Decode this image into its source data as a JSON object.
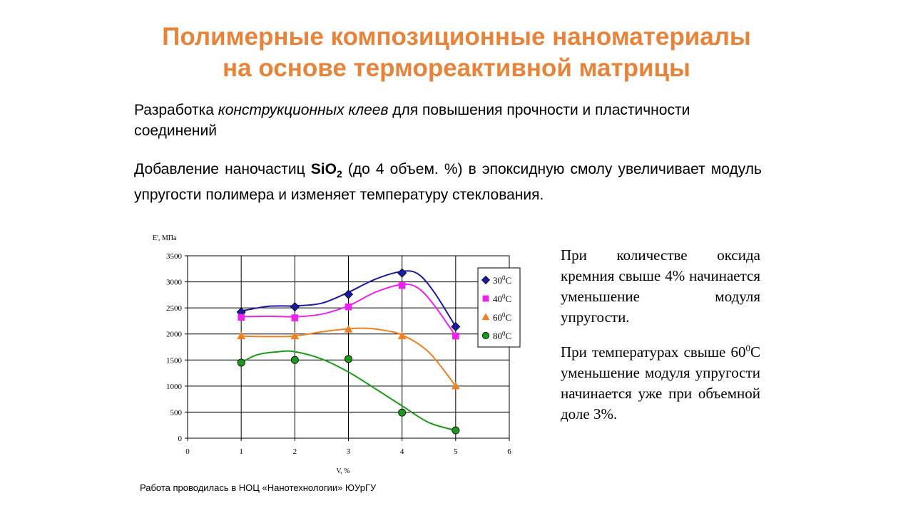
{
  "slide": {
    "title_line1": "Полимерные композиционные наноматериалы",
    "title_line2": "на основе термореактивной матрицы",
    "para1_a": "Разработка ",
    "para1_b": "конструкционных клеев",
    "para1_c": " для повышения прочности и пластичности соединений",
    "para2_a": "Добавление наночастиц ",
    "para2_b": "SiO",
    "para2_b_sub": "2",
    "para2_c": " (до 4 объем. %) в эпоксидную смолу увеличивает модуль упругости полимера и изменяет температуру стеклования.",
    "side1": "При количестве оксида кремния свыше 4% начинается уменьшение модуля упругости.",
    "side2_a": "При температурах свыше 60",
    "side2_sup": "0",
    "side2_b": "С уменьшение модуля упругости начинается уже при объемной доле 3%.",
    "footer": "Работа проводилась в НОЦ «Нанотехнологии»  ЮУрГУ"
  },
  "chart_data": {
    "type": "line",
    "ylabel": "E', МПа",
    "xlabel": "V, %",
    "xlim": [
      0,
      6
    ],
    "ylim": [
      0,
      3500
    ],
    "x_ticks": [
      0,
      1,
      2,
      3,
      4,
      5,
      6
    ],
    "y_ticks": [
      0,
      500,
      1000,
      1500,
      2000,
      2500,
      3000,
      3500
    ],
    "grid": true,
    "legend_position": "right",
    "series": [
      {
        "name": "30",
        "unit": "C",
        "color": "#1a1aa6",
        "marker": "diamond",
        "x": [
          1,
          2,
          3,
          4,
          5
        ],
        "y": [
          2420,
          2520,
          2760,
          3170,
          2140
        ]
      },
      {
        "name": "40",
        "unit": "C",
        "color": "#ee22ee",
        "marker": "square",
        "x": [
          1,
          2,
          3,
          4,
          5
        ],
        "y": [
          2320,
          2310,
          2520,
          2930,
          1960
        ]
      },
      {
        "name": "60",
        "unit": "C",
        "color": "#f08020",
        "marker": "triangle",
        "x": [
          1,
          2,
          3,
          4,
          5
        ],
        "y": [
          1960,
          1960,
          2090,
          1960,
          1000
        ]
      },
      {
        "name": "80",
        "unit": "C",
        "color": "#1a9a1a",
        "marker": "circle",
        "x": [
          1,
          2,
          3,
          4,
          5
        ],
        "y": [
          1450,
          1500,
          1520,
          490,
          150
        ]
      }
    ],
    "fit_curves": [
      {
        "series": "30",
        "points": [
          [
            1,
            2440
          ],
          [
            1.5,
            2530
          ],
          [
            2,
            2540
          ],
          [
            2.5,
            2590
          ],
          [
            3,
            2800
          ],
          [
            3.5,
            3050
          ],
          [
            4,
            3200
          ],
          [
            4.3,
            3150
          ],
          [
            4.6,
            2800
          ],
          [
            5,
            2140
          ]
        ]
      },
      {
        "series": "40",
        "points": [
          [
            1,
            2330
          ],
          [
            1.5,
            2340
          ],
          [
            2,
            2330
          ],
          [
            2.5,
            2380
          ],
          [
            3,
            2540
          ],
          [
            3.5,
            2800
          ],
          [
            4,
            2950
          ],
          [
            4.3,
            2880
          ],
          [
            4.6,
            2550
          ],
          [
            5,
            1960
          ]
        ]
      },
      {
        "series": "60",
        "points": [
          [
            1,
            1960
          ],
          [
            1.5,
            1950
          ],
          [
            2,
            1960
          ],
          [
            2.5,
            2040
          ],
          [
            3,
            2100
          ],
          [
            3.3,
            2110
          ],
          [
            3.6,
            2080
          ],
          [
            4,
            1980
          ],
          [
            4.5,
            1650
          ],
          [
            5,
            1000
          ]
        ]
      },
      {
        "series": "80",
        "points": [
          [
            1,
            1450
          ],
          [
            1.3,
            1600
          ],
          [
            1.7,
            1660
          ],
          [
            2,
            1660
          ],
          [
            2.5,
            1520
          ],
          [
            3,
            1270
          ],
          [
            3.5,
            950
          ],
          [
            4,
            620
          ],
          [
            4.5,
            300
          ],
          [
            5,
            150
          ]
        ]
      }
    ]
  }
}
